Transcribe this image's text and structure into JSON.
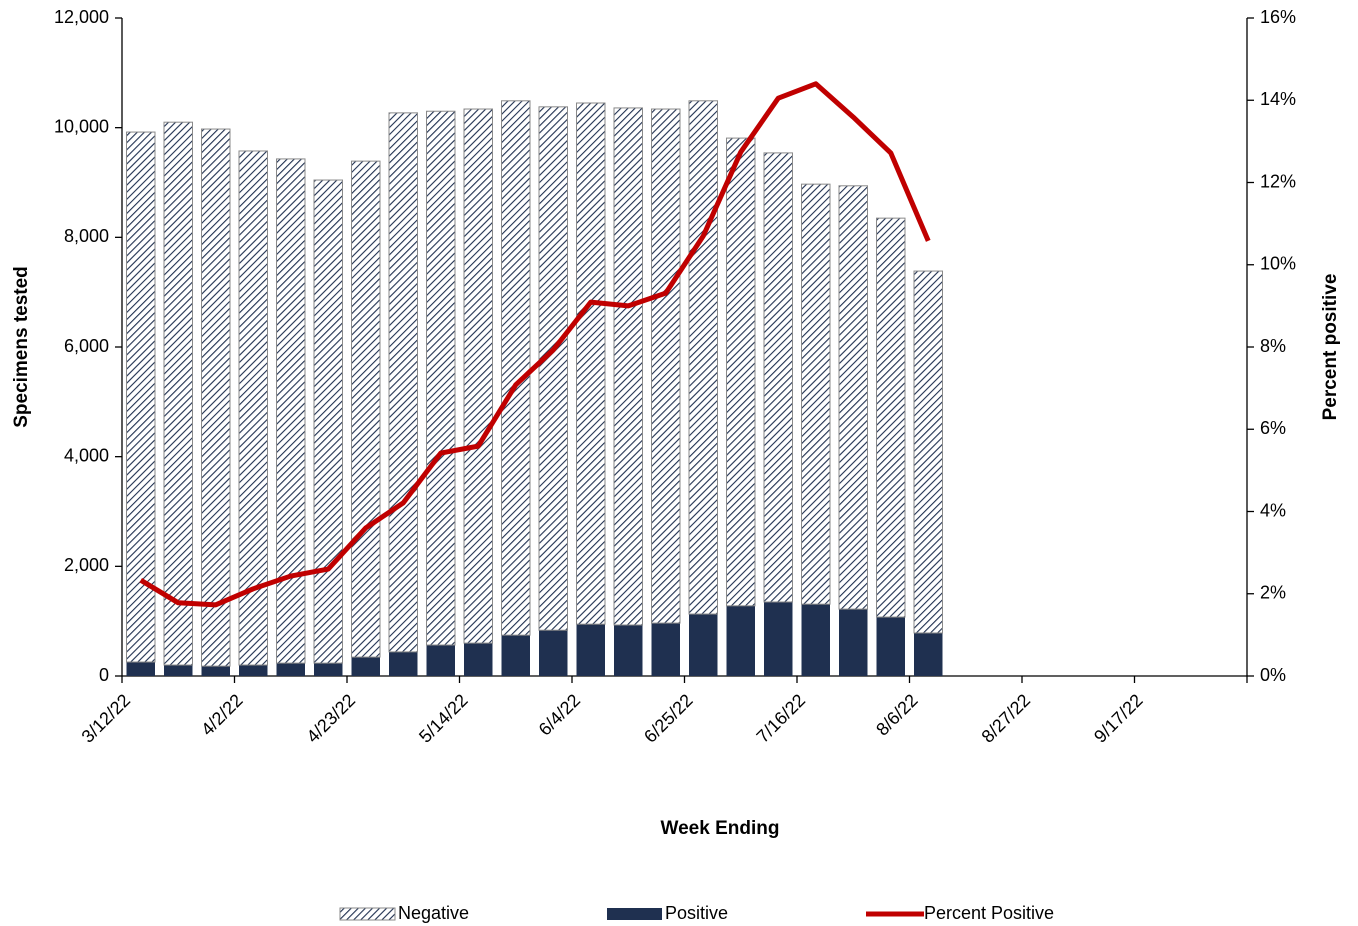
{
  "chart_data": {
    "type": "bar_line",
    "x_label": "Week Ending",
    "y_label": "Specimens tested",
    "y2_label": "Percent positive",
    "categories": [
      "3/12/22",
      null,
      null,
      "4/2/22",
      null,
      null,
      "4/23/22",
      null,
      null,
      "5/14/22",
      null,
      null,
      "6/4/22",
      null,
      null,
      "6/25/22",
      null,
      null,
      "7/16/22",
      null,
      null,
      "8/6/22",
      null,
      null,
      "8/27/22",
      null,
      null,
      "9/17/22",
      null,
      null
    ],
    "series": [
      {
        "name": "Negative",
        "type": "bar",
        "color": "#1f3050",
        "hatch": true,
        "values": [
          9665,
          9900,
          9795,
          9375,
          9195,
          8810,
          9045,
          9830,
          9735,
          9740,
          9745,
          9545,
          9505,
          9430,
          9375,
          9360,
          8530,
          8190,
          7660,
          7720,
          7275,
          6600,
          null,
          null,
          null,
          null,
          null,
          null,
          null,
          null
        ]
      },
      {
        "name": "Positive",
        "type": "bar",
        "color": "#1f3050",
        "values": [
          255,
          200,
          180,
          200,
          235,
          235,
          345,
          440,
          565,
          600,
          745,
          835,
          945,
          930,
          965,
          1130,
          1280,
          1350,
          1310,
          1220,
          1075,
          785,
          null,
          null,
          null,
          null,
          null,
          null,
          null,
          null
        ]
      },
      {
        "name": "Percent Positive",
        "type": "line",
        "axis": "y2",
        "color": "#c00000",
        "values": [
          2.33,
          1.78,
          1.73,
          2.12,
          2.43,
          2.6,
          3.6,
          4.21,
          5.42,
          5.59,
          7.08,
          7.93,
          9.09,
          9.0,
          9.31,
          10.7,
          12.74,
          14.05,
          14.4,
          13.59,
          12.72,
          10.58,
          null,
          null,
          null,
          null,
          null,
          null,
          null,
          null
        ]
      }
    ],
    "ylim": [
      0,
      12000
    ],
    "yticks": [
      0,
      {
        "value": 2000,
        "label": "2,000"
      },
      {
        "value": 4000,
        "label": "4,000"
      },
      {
        "value": 6000,
        "label": "6,000"
      },
      {
        "value": 8000,
        "label": "8,000"
      },
      {
        "value": 10000,
        "label": "10,000"
      },
      {
        "value": 12000,
        "label": "12,000"
      }
    ],
    "y2lim": [
      0,
      16
    ],
    "y2ticks": [
      {
        "value": 0,
        "label": "0%"
      },
      {
        "value": 2,
        "label": "2%"
      },
      {
        "value": 4,
        "label": "4%"
      },
      {
        "value": 6,
        "label": "6%"
      },
      {
        "value": 8,
        "label": "8%"
      },
      {
        "value": 10,
        "label": "10%"
      },
      {
        "value": 12,
        "label": "12%"
      },
      {
        "value": 14,
        "label": "14%"
      },
      {
        "value": 16,
        "label": "16%"
      }
    ],
    "legend": "bottom"
  }
}
